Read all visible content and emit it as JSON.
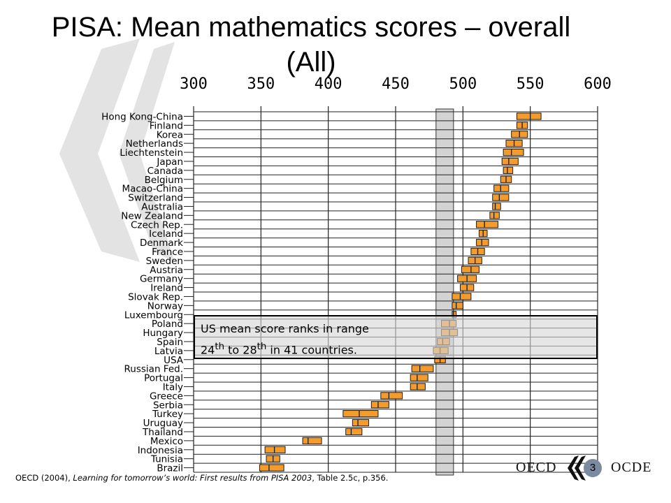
{
  "title": {
    "line1": "PISA: Mean mathematics scores – overall",
    "line2": "(All)"
  },
  "colors": {
    "bar_fill": "#f39c2b",
    "bar_stroke": "#1a1a1a",
    "us_band": "#d3d3d3",
    "callout_bg": "#d7d7d7",
    "watermark": "#e3e3e3",
    "logo_circle": "#7a8aa0"
  },
  "callout": {
    "line1": "US mean score ranks in range",
    "line2_pre": "24",
    "line2_sup1": "th",
    "line2_mid": " to 28",
    "line2_sup2": "th",
    "line2_post": " in 41 countries."
  },
  "citation": {
    "prefix": "OECD (2004), ",
    "title": "Learning for tomorrow’s world: First results from PISA 2003",
    "suffix": ", Table 2.5c, p.356."
  },
  "logo": {
    "left_text": "OECD",
    "right_text": "OCDE",
    "page_number": "3"
  },
  "chart_data": {
    "type": "range",
    "title": "",
    "xlabel": "",
    "ylabel": "",
    "x_ticks": [
      300,
      350,
      400,
      450,
      500,
      550,
      600
    ],
    "xlim": [
      300,
      600
    ],
    "grid": true,
    "us_band": [
      480,
      493
    ],
    "countries": [
      {
        "name": "Hong Kong-China",
        "low": 540,
        "mid": 550,
        "high": 558
      },
      {
        "name": "Finland",
        "low": 540,
        "mid": 544,
        "high": 548
      },
      {
        "name": "Korea",
        "low": 536,
        "mid": 542,
        "high": 548
      },
      {
        "name": "Netherlands",
        "low": 532,
        "mid": 538,
        "high": 544
      },
      {
        "name": "Liechtenstein",
        "low": 530,
        "mid": 536,
        "high": 545
      },
      {
        "name": "Japan",
        "low": 529,
        "mid": 534,
        "high": 541
      },
      {
        "name": "Canada",
        "low": 530,
        "mid": 533,
        "high": 537
      },
      {
        "name": "Belgium",
        "low": 528,
        "mid": 532,
        "high": 536
      },
      {
        "name": "Macao-China",
        "low": 523,
        "mid": 528,
        "high": 534
      },
      {
        "name": "Switzerland",
        "low": 522,
        "mid": 527,
        "high": 534
      },
      {
        "name": "Australia",
        "low": 522,
        "mid": 524,
        "high": 528
      },
      {
        "name": "New Zealand",
        "low": 520,
        "mid": 523,
        "high": 527
      },
      {
        "name": "Czech Rep.",
        "low": 510,
        "mid": 516,
        "high": 526
      },
      {
        "name": "Iceland",
        "low": 512,
        "mid": 515,
        "high": 518
      },
      {
        "name": "Denmark",
        "low": 510,
        "mid": 514,
        "high": 519
      },
      {
        "name": "France",
        "low": 506,
        "mid": 511,
        "high": 516
      },
      {
        "name": "Sweden",
        "low": 504,
        "mid": 509,
        "high": 514
      },
      {
        "name": "Austria",
        "low": 499,
        "mid": 506,
        "high": 512
      },
      {
        "name": "Germany",
        "low": 496,
        "mid": 503,
        "high": 510
      },
      {
        "name": "Ireland",
        "low": 498,
        "mid": 503,
        "high": 508
      },
      {
        "name": "Slovak Rep.",
        "low": 492,
        "mid": 498,
        "high": 506
      },
      {
        "name": "Norway",
        "low": 492,
        "mid": 495,
        "high": 500
      },
      {
        "name": "Luxembourg",
        "low": 492,
        "mid": 493,
        "high": 495
      },
      {
        "name": "Poland",
        "low": 484,
        "mid": 490,
        "high": 495
      },
      {
        "name": "Hungary",
        "low": 484,
        "mid": 490,
        "high": 496
      },
      {
        "name": "Spain",
        "low": 481,
        "mid": 485,
        "high": 490
      },
      {
        "name": "Latvia",
        "low": 478,
        "mid": 483,
        "high": 489
      },
      {
        "name": "USA",
        "low": 479,
        "mid": 483,
        "high": 487
      },
      {
        "name": "Russian Fed.",
        "low": 462,
        "mid": 468,
        "high": 478
      },
      {
        "name": "Portugal",
        "low": 461,
        "mid": 466,
        "high": 474
      },
      {
        "name": "Italy",
        "low": 461,
        "mid": 466,
        "high": 472
      },
      {
        "name": "Greece",
        "low": 439,
        "mid": 445,
        "high": 455
      },
      {
        "name": "Serbia",
        "low": 432,
        "mid": 437,
        "high": 445
      },
      {
        "name": "Turkey",
        "low": 411,
        "mid": 423,
        "high": 437
      },
      {
        "name": "Uruguay",
        "low": 418,
        "mid": 422,
        "high": 430
      },
      {
        "name": "Thailand",
        "low": 413,
        "mid": 417,
        "high": 425
      },
      {
        "name": "Mexico",
        "low": 381,
        "mid": 385,
        "high": 395
      },
      {
        "name": "Indonesia",
        "low": 353,
        "mid": 360,
        "high": 368
      },
      {
        "name": "Tunisia",
        "low": 354,
        "mid": 359,
        "high": 364
      },
      {
        "name": "Brazil",
        "low": 349,
        "mid": 356,
        "high": 367
      }
    ]
  }
}
